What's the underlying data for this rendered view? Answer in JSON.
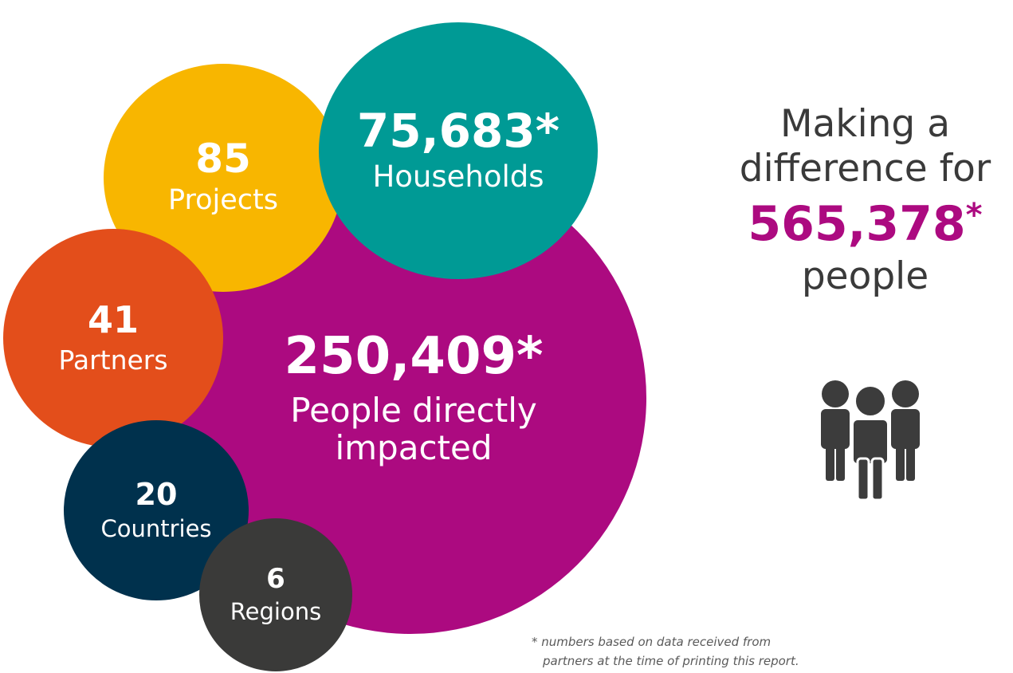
{
  "colors": {
    "people_bubble": "#ac0a80",
    "projects_bubble": "#f8b600",
    "households_bubble": "#009a95",
    "partners_bubble": "#e34e1b",
    "countries_bubble": "#00314d",
    "regions_bubble": "#3a3a39",
    "headline_text": "#3a3a3a",
    "highlight_number": "#ac0a80",
    "icon": "#3c3c3c"
  },
  "bubbles": {
    "people": {
      "value": "250,409*",
      "label_line1": "People directly",
      "label_line2": "impacted"
    },
    "projects": {
      "value": "85",
      "label": "Projects"
    },
    "households": {
      "value": "75,683*",
      "label": "Households"
    },
    "partners": {
      "value": "41",
      "label": "Partners"
    },
    "countries": {
      "value": "20",
      "label": "Countries"
    },
    "regions": {
      "value": "6",
      "label": "Regions"
    }
  },
  "headline": {
    "line1": "Making a",
    "line2": "difference for",
    "total_value": "565,378",
    "total_marker": "*",
    "line4": "people"
  },
  "icon": "people-group-icon",
  "footnote": {
    "line1": "* numbers based on data received from",
    "line2": "partners at the time of printing this report."
  }
}
